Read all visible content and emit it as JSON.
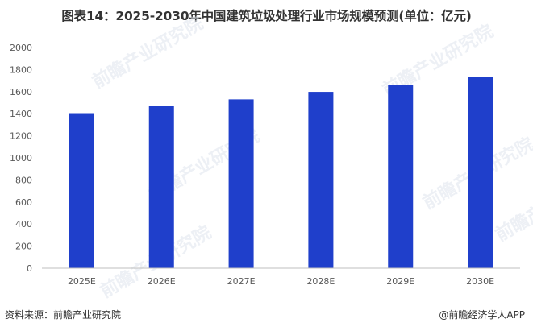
{
  "title": "图表14：2025-2030年中国建筑垃圾处理行业市场规模预测(单位：亿元)",
  "footer": {
    "source": "资料来源：前瞻产业研究院",
    "brand": "@前瞻经济学人APP"
  },
  "watermark": "前瞻产业研究院",
  "colors": {
    "bar": "#1f3fcb",
    "axis": "#bfbfbf",
    "tick_text": "#595959"
  },
  "chart_data": {
    "type": "bar",
    "title": "图表14：2025-2030年中国建筑垃圾处理行业市场规模预测(单位：亿元)",
    "xlabel": "",
    "ylabel": "",
    "categories": [
      "2025E",
      "2026E",
      "2027E",
      "2028E",
      "2029E",
      "2030E"
    ],
    "series": [
      {
        "values": [
          1405,
          1470,
          1530,
          1598,
          1662,
          1735
        ]
      }
    ],
    "ylim": [
      0,
      2000
    ],
    "yticks": [
      0,
      200,
      400,
      600,
      800,
      1000,
      1200,
      1400,
      1600,
      1800,
      2000
    ],
    "grid": false,
    "legend": "none"
  }
}
